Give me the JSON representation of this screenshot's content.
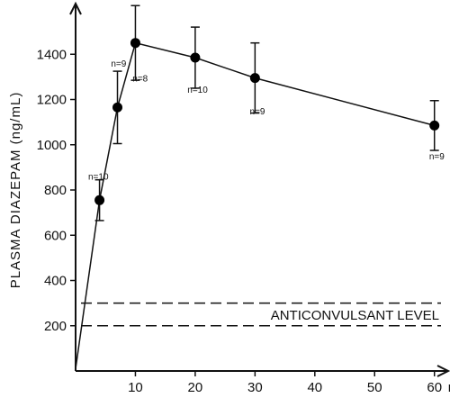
{
  "chart_data": {
    "type": "line",
    "title": "",
    "xlabel": "min",
    "ylabel": "PLASMA DIAZEPAM (ng/mL)",
    "xlim": [
      0,
      62
    ],
    "ylim": [
      0,
      1600
    ],
    "x_ticks": [
      10,
      20,
      30,
      40,
      50,
      60
    ],
    "y_ticks": [
      200,
      400,
      600,
      800,
      1000,
      1200,
      1400
    ],
    "grid": false,
    "series": [
      {
        "x": [
          0,
          4,
          7,
          10,
          20,
          30,
          60
        ],
        "y": [
          10,
          755,
          1165,
          1450,
          1385,
          1295,
          1085
        ],
        "error": [
          null,
          90,
          160,
          165,
          135,
          155,
          110
        ]
      }
    ],
    "annotations": [
      {
        "text": "n=10",
        "x": 3.8,
        "y": 845
      },
      {
        "text": "n=9",
        "x": 7.2,
        "y": 1345
      },
      {
        "text": "n=8",
        "x": 10.8,
        "y": 1280
      },
      {
        "text": "n=10",
        "x": 20.4,
        "y": 1230
      },
      {
        "text": "n=9",
        "x": 30.4,
        "y": 1135
      },
      {
        "text": "n=9",
        "x": 60.4,
        "y": 935
      }
    ],
    "reference_band": {
      "label": "ANTICONVULSANT LEVEL",
      "lower": 200,
      "upper": 300
    }
  }
}
